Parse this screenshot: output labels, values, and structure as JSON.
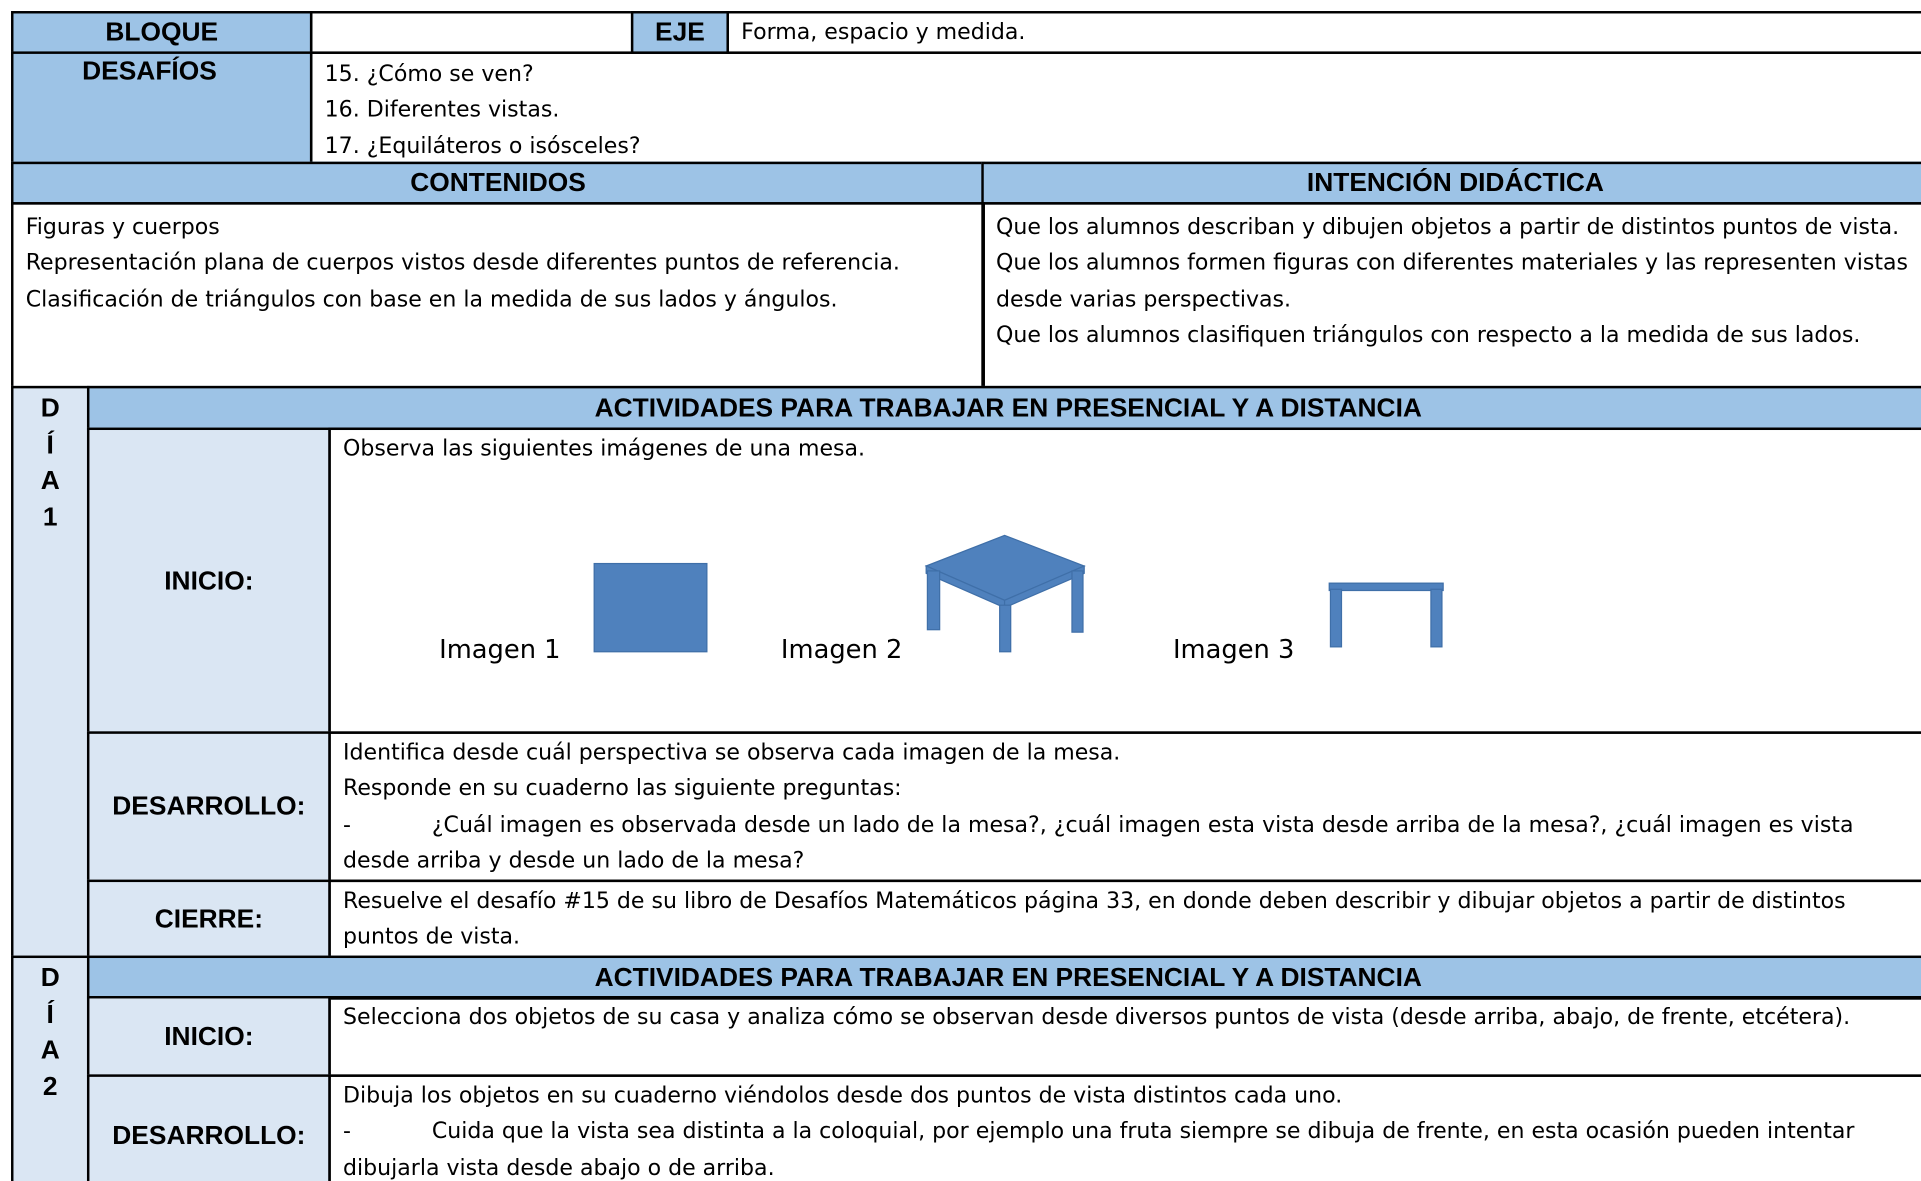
{
  "header": {
    "bloque_label": "BLOQUE",
    "eje_label": "EJE",
    "eje": "Forma, espacio y medida.",
    "desafios_label": "DESAFÍOS",
    "desafios": [
      "15. ¿Cómo se ven?",
      "16. Diferentes vistas.",
      "17. ¿Equiláteros o isósceles?"
    ]
  },
  "contenidos": {
    "title": "CONTENIDOS",
    "items": [
      "Figuras y cuerpos",
      "Representación plana de cuerpos vistos desde diferentes puntos de referencia.",
      "Clasificación de triángulos con base en la medida de sus lados y ángulos."
    ]
  },
  "intencion": {
    "title": "INTENCIÓN DIDÁCTICA",
    "items": [
      "Que los alumnos describan y dibujen objetos a partir de distintos puntos de vista.",
      "Que los alumnos formen figuras con diferentes materiales y las representen vistas desde varias perspectivas.",
      "Que los alumnos clasifiquen triángulos con respecto a la medida de sus lados."
    ]
  },
  "days": [
    {
      "letters": [
        "D",
        "Í",
        "A",
        "1"
      ],
      "title": "ACTIVIDADES PARA TRABAJAR EN PRESENCIAL Y A DISTANCIA",
      "rows": [
        {
          "label": "INICIO:",
          "paragraphs": [
            {
              "text": "Observa las siguientes imágenes de una mesa."
            }
          ],
          "images": [
            "Imagen 1",
            "Imagen 2",
            "Imagen 3"
          ]
        },
        {
          "label": "DESARROLLO:",
          "paragraphs": [
            {
              "text": "Identifica desde cuál perspectiva se observa cada imagen de la mesa."
            },
            {
              "text": "Responde en su cuaderno las siguiente preguntas:"
            },
            {
              "marker": "-",
              "text": "¿Cuál imagen es observada desde un lado de la mesa?, ¿cuál imagen esta vista desde arriba de la mesa?, ¿cuál imagen es vista desde arriba y desde un lado de la mesa?"
            }
          ]
        },
        {
          "label": "CIERRE:",
          "paragraphs": [
            {
              "text": "Resuelve el desafío #15 de su libro de Desafíos Matemáticos página 33, en donde deben describir y dibujar objetos a partir de distintos puntos de vista."
            }
          ]
        }
      ]
    },
    {
      "letters": [
        "D",
        "Í",
        "A",
        "2"
      ],
      "title": "ACTIVIDADES PARA TRABAJAR EN PRESENCIAL Y A DISTANCIA",
      "rows": [
        {
          "label": "INICIO:",
          "paragraphs": [
            {
              "text": "Selecciona dos objetos de su casa y analiza cómo se observan desde diversos puntos de vista (desde arriba, abajo, de frente, etcétera)."
            }
          ]
        },
        {
          "label": "DESARROLLO:",
          "paragraphs": [
            {
              "text": "Dibuja los objetos en su cuaderno viéndolos desde dos puntos de vista distintos cada uno."
            },
            {
              "marker": "-",
              "text": "Cuida que la vista sea distinta a la coloquial, por ejemplo una fruta siempre se dibuja de frente, en esta ocasión pueden intentar dibujarla vista desde abajo o de arriba."
            }
          ]
        }
      ]
    }
  ]
}
